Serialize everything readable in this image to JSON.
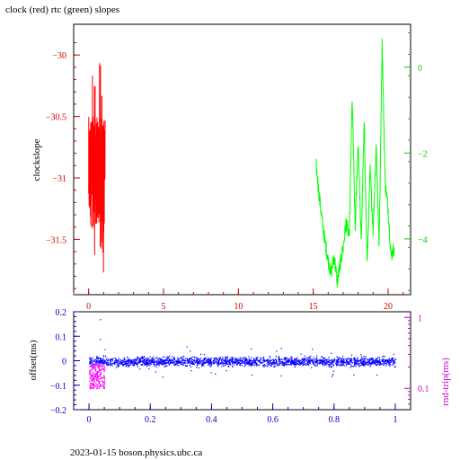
{
  "title": "clock (red) rtc (green) slopes",
  "footer": "2023-01-15  boson.physics.ubc.ca",
  "chart_data": [
    {
      "type": "line",
      "ylabel": "clockslope",
      "xlim": [
        -1,
        21.5
      ],
      "ylim": [
        -31.95,
        -29.75
      ],
      "y2lim": [
        -5.3,
        1.0
      ],
      "xticks": [
        "0",
        "5",
        "10",
        "15",
        "20"
      ],
      "yticks": [
        "-30",
        "-30.5",
        "-31",
        "-31.5"
      ],
      "y2ticks": [
        "0",
        "-2",
        "-4"
      ],
      "colors": {
        "left_axis": "#cc0000",
        "right_axis": "#00cc00",
        "bottom_axis": "#cc0000"
      },
      "series": [
        {
          "name": "clock",
          "axis": "left",
          "color": "#ff0000",
          "x_range": [
            0.0,
            1.1
          ],
          "envelope": {
            "min": -31.85,
            "max": -29.85
          }
        },
        {
          "name": "rtc",
          "axis": "right",
          "color": "#00ff00",
          "x": [
            15.2,
            15.4,
            15.6,
            15.8,
            16.0,
            16.2,
            16.4,
            16.6,
            16.8,
            17.0,
            17.2,
            17.4,
            17.6,
            17.8,
            18.0,
            18.2,
            18.4,
            18.6,
            18.8,
            19.0,
            19.2,
            19.4,
            19.6,
            19.8,
            20.0,
            20.2,
            20.4
          ],
          "y": [
            -2.3,
            -3.0,
            -3.6,
            -4.1,
            -4.5,
            -4.8,
            -4.4,
            -5.0,
            -4.6,
            -4.2,
            -3.6,
            -4.0,
            -0.7,
            -3.8,
            -1.7,
            -4.1,
            -1.3,
            -4.6,
            -2.4,
            -3.8,
            -1.8,
            -4.2,
            0.6,
            -2.7,
            -3.3,
            -4.4,
            -4.2
          ]
        }
      ]
    },
    {
      "type": "scatter",
      "ylabel": "offset(ms)",
      "y2label": "rnd-trip(ms)",
      "xlim": [
        -0.05,
        1.05
      ],
      "ylim": [
        -0.2,
        0.2
      ],
      "y2lim": [
        0.05,
        1.2
      ],
      "y2scale": "log",
      "xticks": [
        "0",
        "0.2",
        "0.4",
        "0.6",
        "0.8",
        "1"
      ],
      "yticks": [
        "0.2",
        "0.1",
        "0",
        "-0.1",
        "-0.2"
      ],
      "y2ticks": [
        "1",
        "0.1"
      ],
      "colors": {
        "left_axis": "#0000cc",
        "right_axis": "#cc00cc"
      },
      "series": [
        {
          "name": "offset",
          "color": "#0000ff",
          "x_range": [
            0.0,
            1.0
          ],
          "center": -0.002,
          "band": 0.018
        },
        {
          "name": "round trip",
          "color": "#ff00ff",
          "x_range": [
            0.0,
            0.05
          ],
          "center": 0.15,
          "outliers": [
            0.95,
            0.5
          ]
        }
      ]
    }
  ]
}
